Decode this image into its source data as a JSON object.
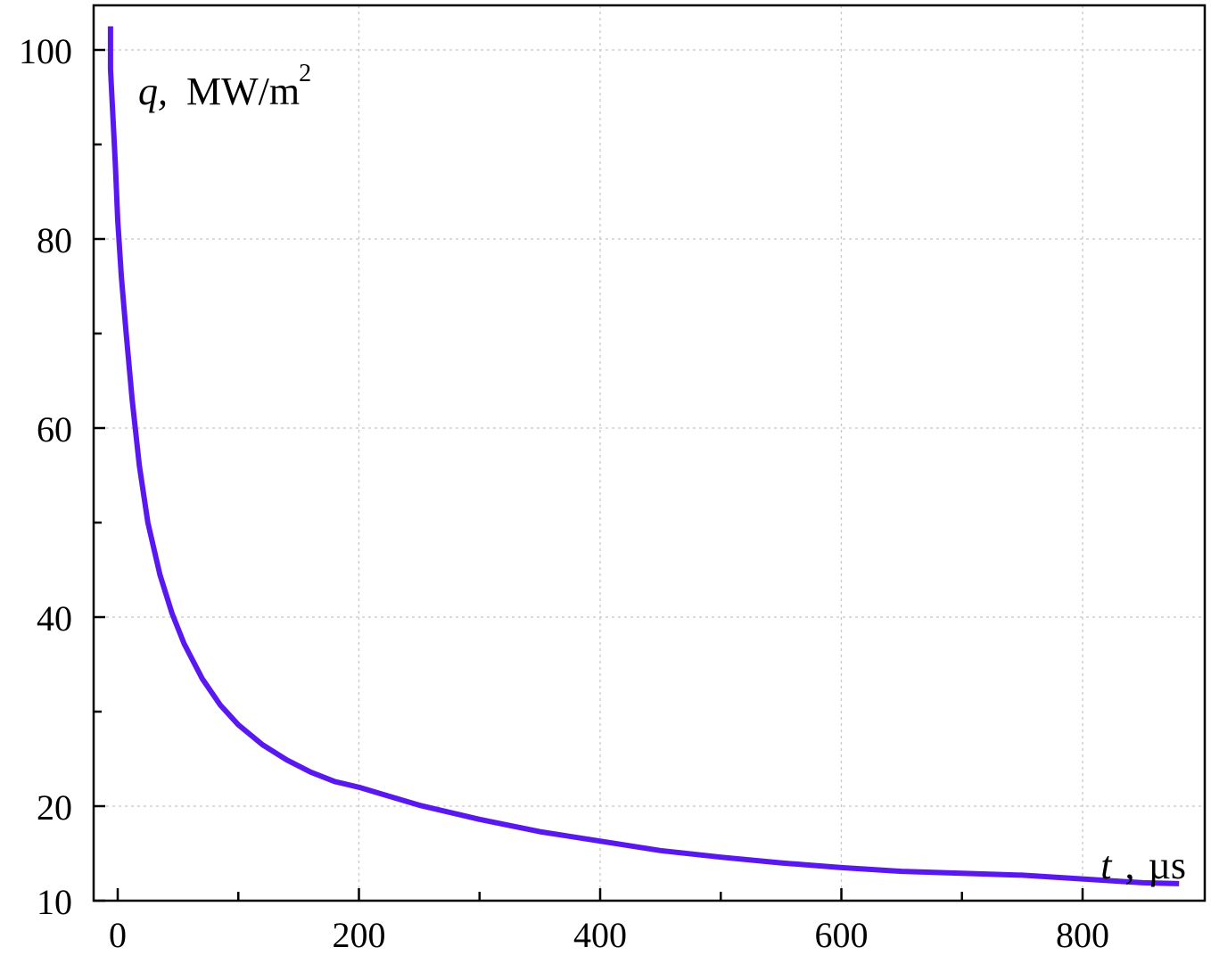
{
  "chart_data": {
    "type": "line",
    "title": "",
    "xlabel": {
      "var": "t",
      "sep": ",",
      "unit": "µs"
    },
    "ylabel": {
      "var": "q,",
      "unit": "MW/m",
      "sup": "2"
    },
    "xlim": [
      -20,
      900
    ],
    "ylim": [
      10,
      105
    ],
    "x_ticks": [
      0,
      200,
      400,
      600,
      800
    ],
    "x_tick_labels": [
      "0",
      "200",
      "400",
      "600",
      "800"
    ],
    "x_minor_ticks": [
      100,
      300,
      500,
      700
    ],
    "y_ticks": [
      10,
      20,
      40,
      60,
      80,
      100
    ],
    "y_tick_labels": [
      "10",
      "20",
      "40",
      "60",
      "80",
      "100"
    ],
    "y_minor_ticks": [
      30,
      50,
      70,
      90
    ],
    "y_grid": [
      20,
      40,
      60,
      80,
      100
    ],
    "grid": true,
    "legend": "none",
    "series": [
      {
        "color": "#5a18f0",
        "x": [
          -6,
          -6,
          -2,
          0,
          3,
          7,
          12,
          18,
          25,
          35,
          45,
          55,
          70,
          85,
          100,
          120,
          140,
          160,
          180,
          200,
          250,
          300,
          350,
          400,
          450,
          500,
          550,
          600,
          650,
          700,
          750,
          800,
          850,
          880
        ],
        "y": [
          102.5,
          98,
          88,
          82,
          76,
          70,
          63,
          56,
          50,
          44.5,
          40.4,
          37.2,
          33.5,
          30.7,
          28.6,
          26.5,
          24.9,
          23.6,
          22.6,
          22.0,
          20.1,
          18.6,
          17.3,
          16.3,
          15.3,
          14.6,
          14.0,
          13.5,
          13.1,
          12.9,
          12.7,
          12.3,
          11.9,
          11.8
        ]
      }
    ]
  }
}
